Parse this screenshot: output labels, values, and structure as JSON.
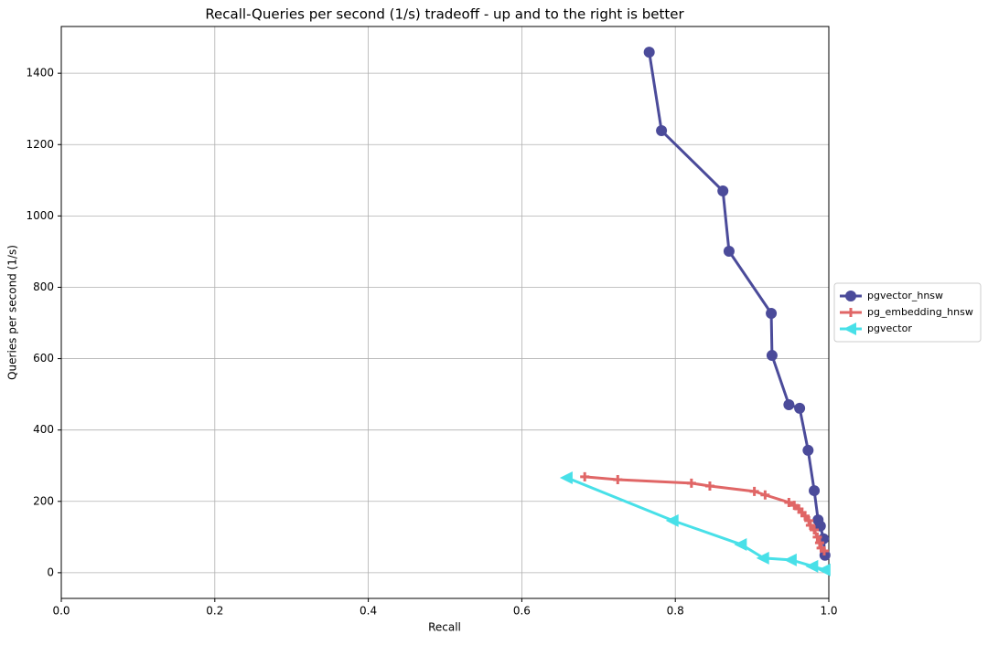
{
  "chart_data": {
    "type": "line",
    "title": "Recall-Queries per second (1/s) tradeoff - up and to the right is better",
    "x_label": "Recall",
    "y_label": "Queries per second (1/s)",
    "xlim": [
      0,
      1
    ],
    "ylim": [
      -72,
      1531
    ],
    "xticks": [
      {
        "value": 0,
        "label": "0.0"
      },
      0.2,
      0.4,
      0.6,
      0.8,
      {
        "value": 1,
        "label": "1.0"
      }
    ],
    "yticks": [
      0,
      200,
      400,
      600,
      800,
      1000,
      1200,
      1400
    ],
    "grid": true,
    "legend": "right",
    "series": [
      {
        "name": "pgvector_hnsw",
        "color": "#4b4b9a",
        "marker": "circle",
        "x": [
          0.766,
          0.782,
          0.862,
          0.87,
          0.925,
          0.926,
          0.948,
          0.962,
          0.973,
          0.981,
          0.986,
          0.989,
          0.993,
          0.995
        ],
        "values": [
          1459,
          1239,
          1070,
          901,
          727,
          609,
          471,
          461,
          343,
          230,
          148,
          131,
          95,
          49
        ]
      },
      {
        "name": "pg_embedding_hnsw",
        "color": "#e06666",
        "marker": "plus",
        "x": [
          0.682,
          0.725,
          0.821,
          0.845,
          0.903,
          0.917,
          0.948,
          0.955,
          0.961,
          0.965,
          0.969,
          0.974,
          0.976,
          0.981,
          0.985,
          0.988,
          0.99,
          0.994
        ],
        "values": [
          269,
          261,
          251,
          243,
          228,
          218,
          197,
          189,
          179,
          169,
          159,
          146,
          133,
          120,
          100,
          84,
          69,
          61
        ]
      },
      {
        "name": "pgvector",
        "color": "#48e0e8",
        "marker": "triangle-left",
        "x": [
          0.659,
          0.797,
          0.886,
          0.915,
          0.951,
          0.979,
          0.995
        ],
        "values": [
          266,
          146,
          79,
          41,
          36,
          18,
          8
        ]
      }
    ]
  }
}
